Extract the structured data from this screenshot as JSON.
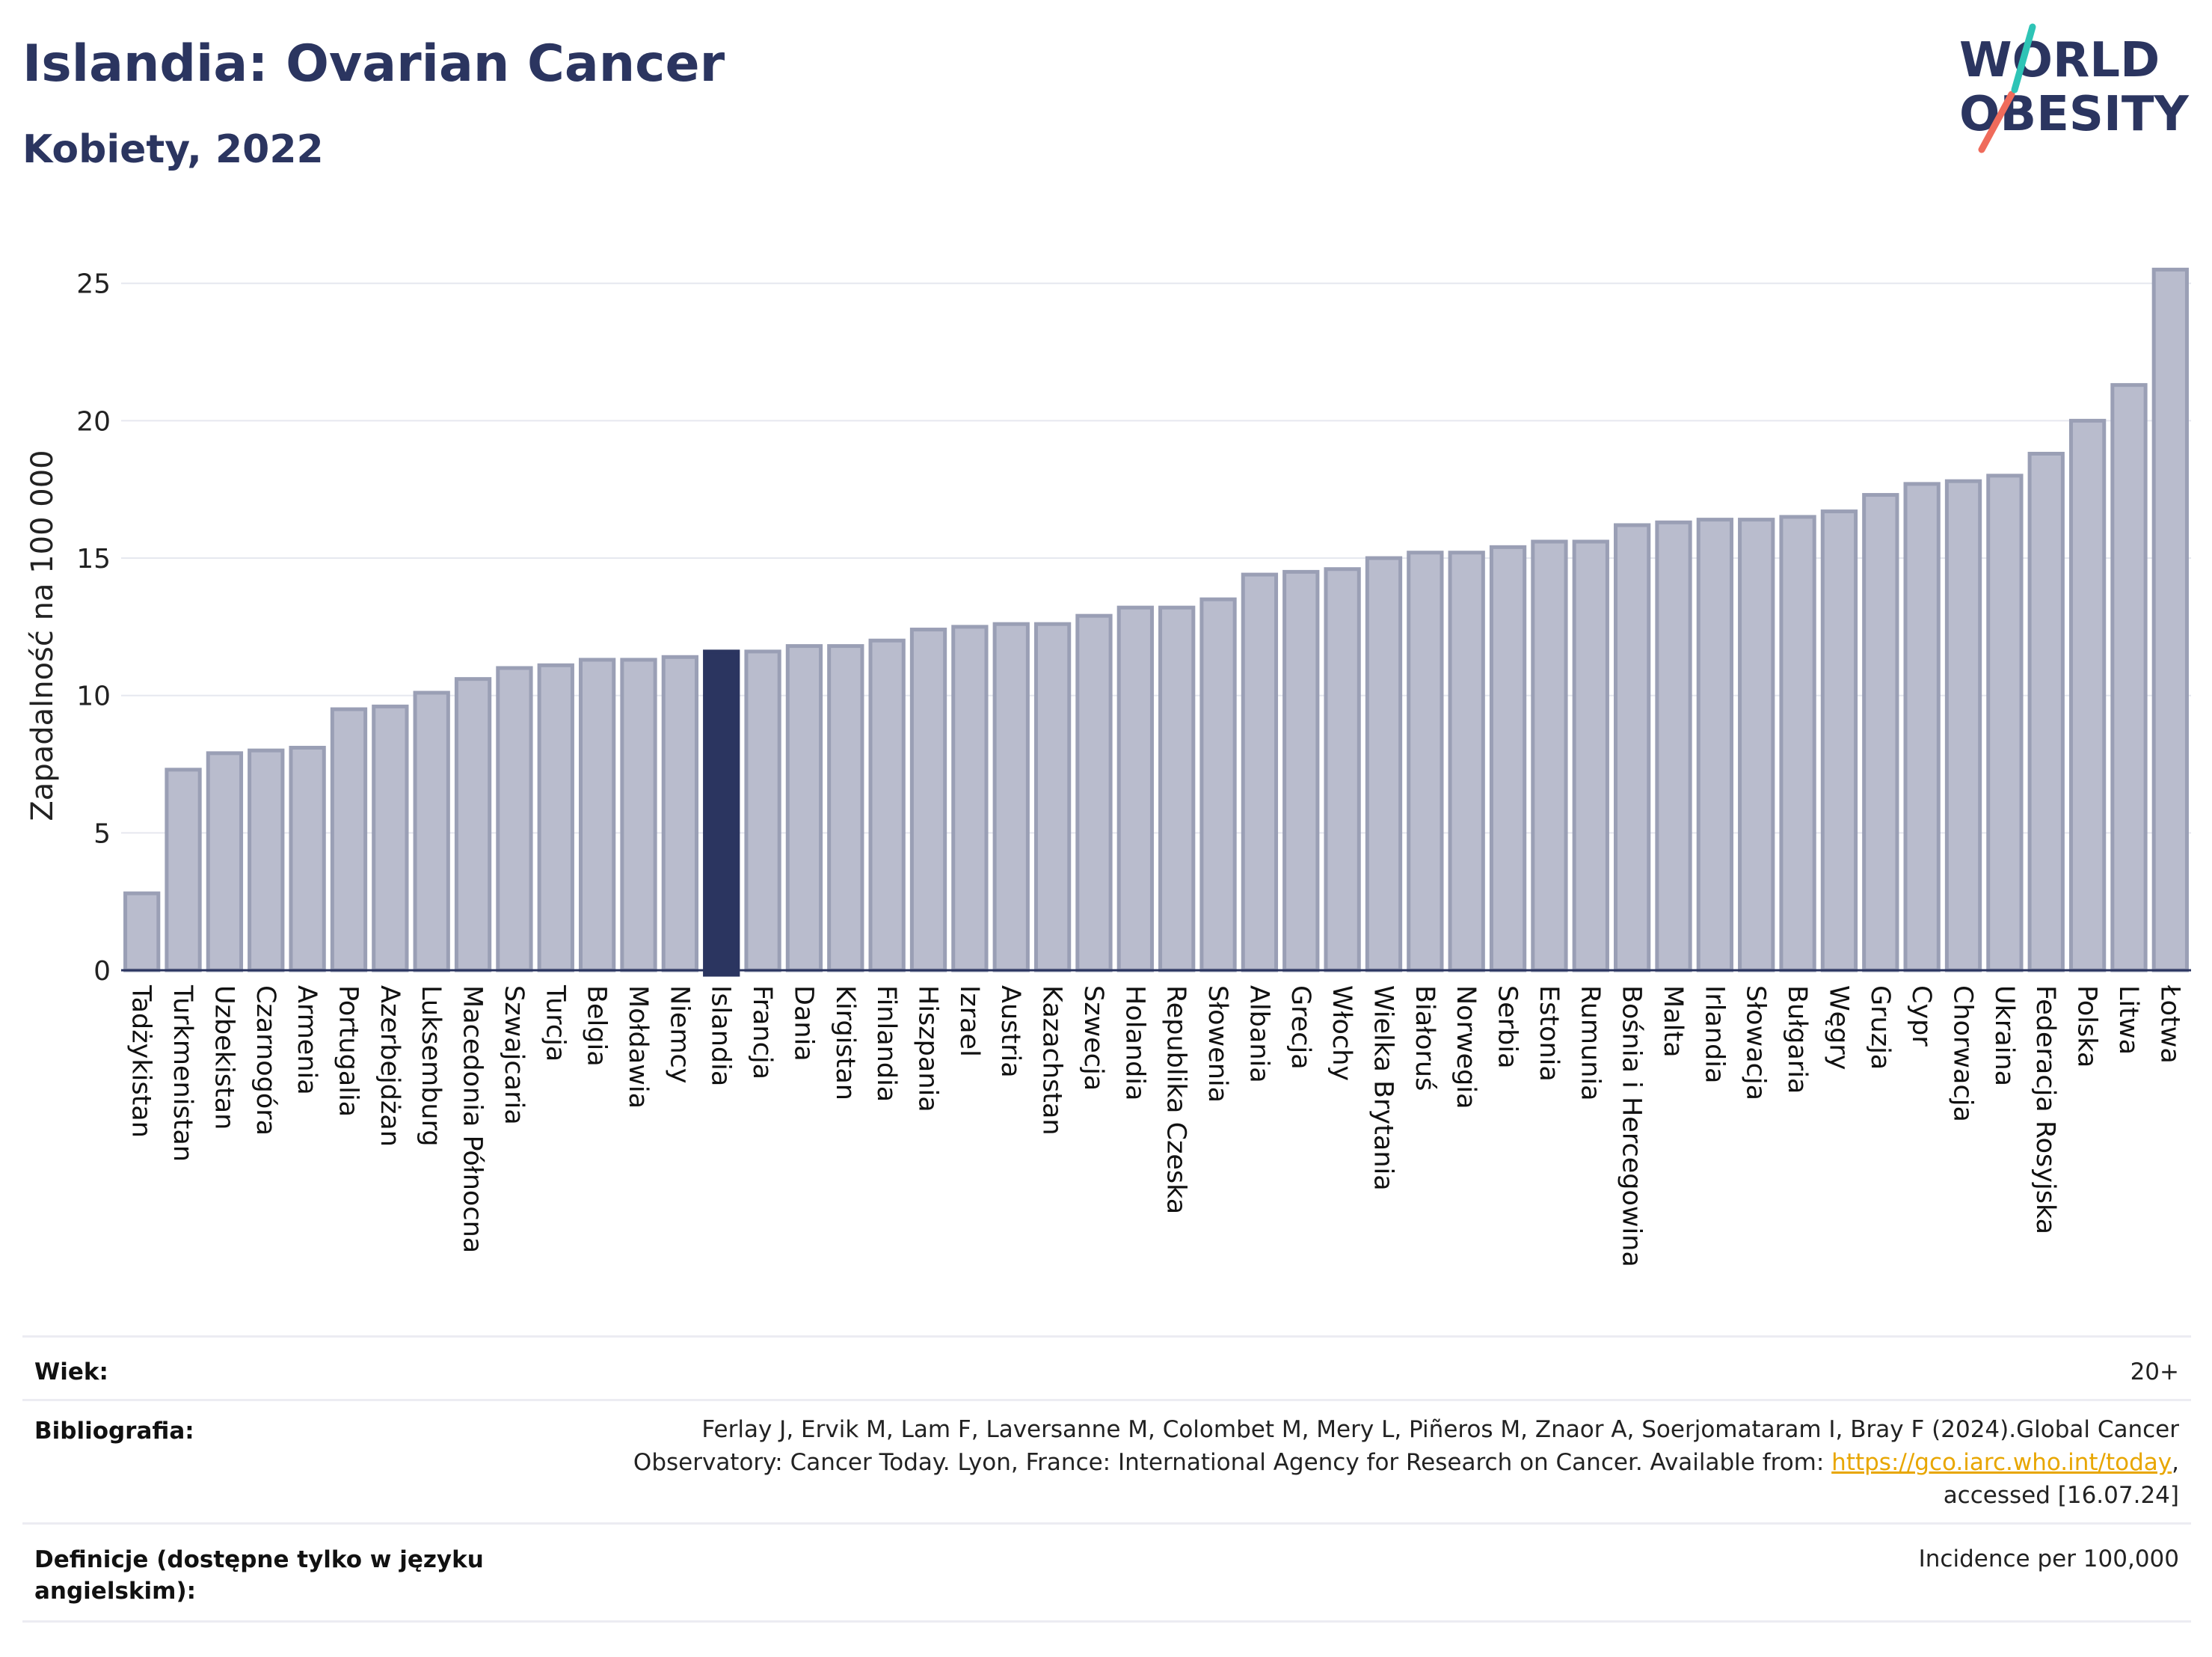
{
  "header": {
    "title": "Islandia: Ovarian Cancer",
    "subtitle": "Kobiety, 2022"
  },
  "logo": {
    "line1": "WORLD",
    "line2": "OBESITY"
  },
  "colors": {
    "bar": "#b9bccd",
    "bar_border": "#9a9fb5",
    "highlight": "#2b3560",
    "text": "#2b3560"
  },
  "chart_data": {
    "type": "bar",
    "title": "Islandia: Ovarian Cancer",
    "subtitle": "Kobiety, 2022",
    "ylabel": "Zapadalność na 100 000",
    "xlabel": "",
    "ylim": [
      0,
      26
    ],
    "yticks": [
      0,
      5,
      10,
      15,
      20,
      25
    ],
    "grid": true,
    "highlight": "Islandia",
    "categories": [
      "Tadżykistan",
      "Turkmenistan",
      "Uzbekistan",
      "Czarnogóra",
      "Armenia",
      "Portugalia",
      "Azerbejdżan",
      "Luksemburg",
      "Macedonia Północna",
      "Szwajcaria",
      "Turcja",
      "Belgia",
      "Mołdawia",
      "Niemcy",
      "Islandia",
      "Francja",
      "Dania",
      "Kirgistan",
      "Finlandia",
      "Hiszpania",
      "Izrael",
      "Austria",
      "Kazachstan",
      "Szwecja",
      "Holandia",
      "Republika Czeska",
      "Słowenia",
      "Albania",
      "Grecja",
      "Włochy",
      "Wielka Brytania",
      "Białoruś",
      "Norwegia",
      "Serbia",
      "Estonia",
      "Rumunia",
      "Bośnia i Hercegowina",
      "Malta",
      "Irlandia",
      "Słowacja",
      "Bułgaria",
      "Węgry",
      "Gruzja",
      "Cypr",
      "Chorwacja",
      "Ukraina",
      "Federacja Rosyjska",
      "Polska",
      "Litwa",
      "Łotwa"
    ],
    "values": [
      2.8,
      7.3,
      7.9,
      8.0,
      8.1,
      9.5,
      9.6,
      10.1,
      10.6,
      11.0,
      11.1,
      11.3,
      11.3,
      11.4,
      11.6,
      11.6,
      11.8,
      11.8,
      12.0,
      12.4,
      12.5,
      12.6,
      12.6,
      12.9,
      13.2,
      13.2,
      13.5,
      14.4,
      14.5,
      14.6,
      15.0,
      15.2,
      15.2,
      15.4,
      15.6,
      15.6,
      16.2,
      16.3,
      16.4,
      16.4,
      16.5,
      16.7,
      17.3,
      17.7,
      17.8,
      18.0,
      18.8,
      20.0,
      21.3,
      25.5
    ]
  },
  "meta": {
    "age_label": "Wiek:",
    "age_value": "20+",
    "bib_label": "Bibliografia:",
    "bib_line1": "Ferlay J, Ervik M, Lam F, Laversanne M, Colombet M, Mery L, Piñeros M, Znaor A, Soerjomataram I, Bray F (2024).Global Cancer",
    "bib_line2_pre": "Observatory: Cancer Today. Lyon, France: International Agency for Research on Cancer. Available from: ",
    "bib_link": "https://gco.iarc.who.int/today",
    "bib_line2_post": ",",
    "bib_line3": "accessed [16.07.24]",
    "def_label_line1": "Definicje (dostępne tylko w języku",
    "def_label_line2": "angielskim):",
    "def_value": "Incidence per 100,000"
  }
}
